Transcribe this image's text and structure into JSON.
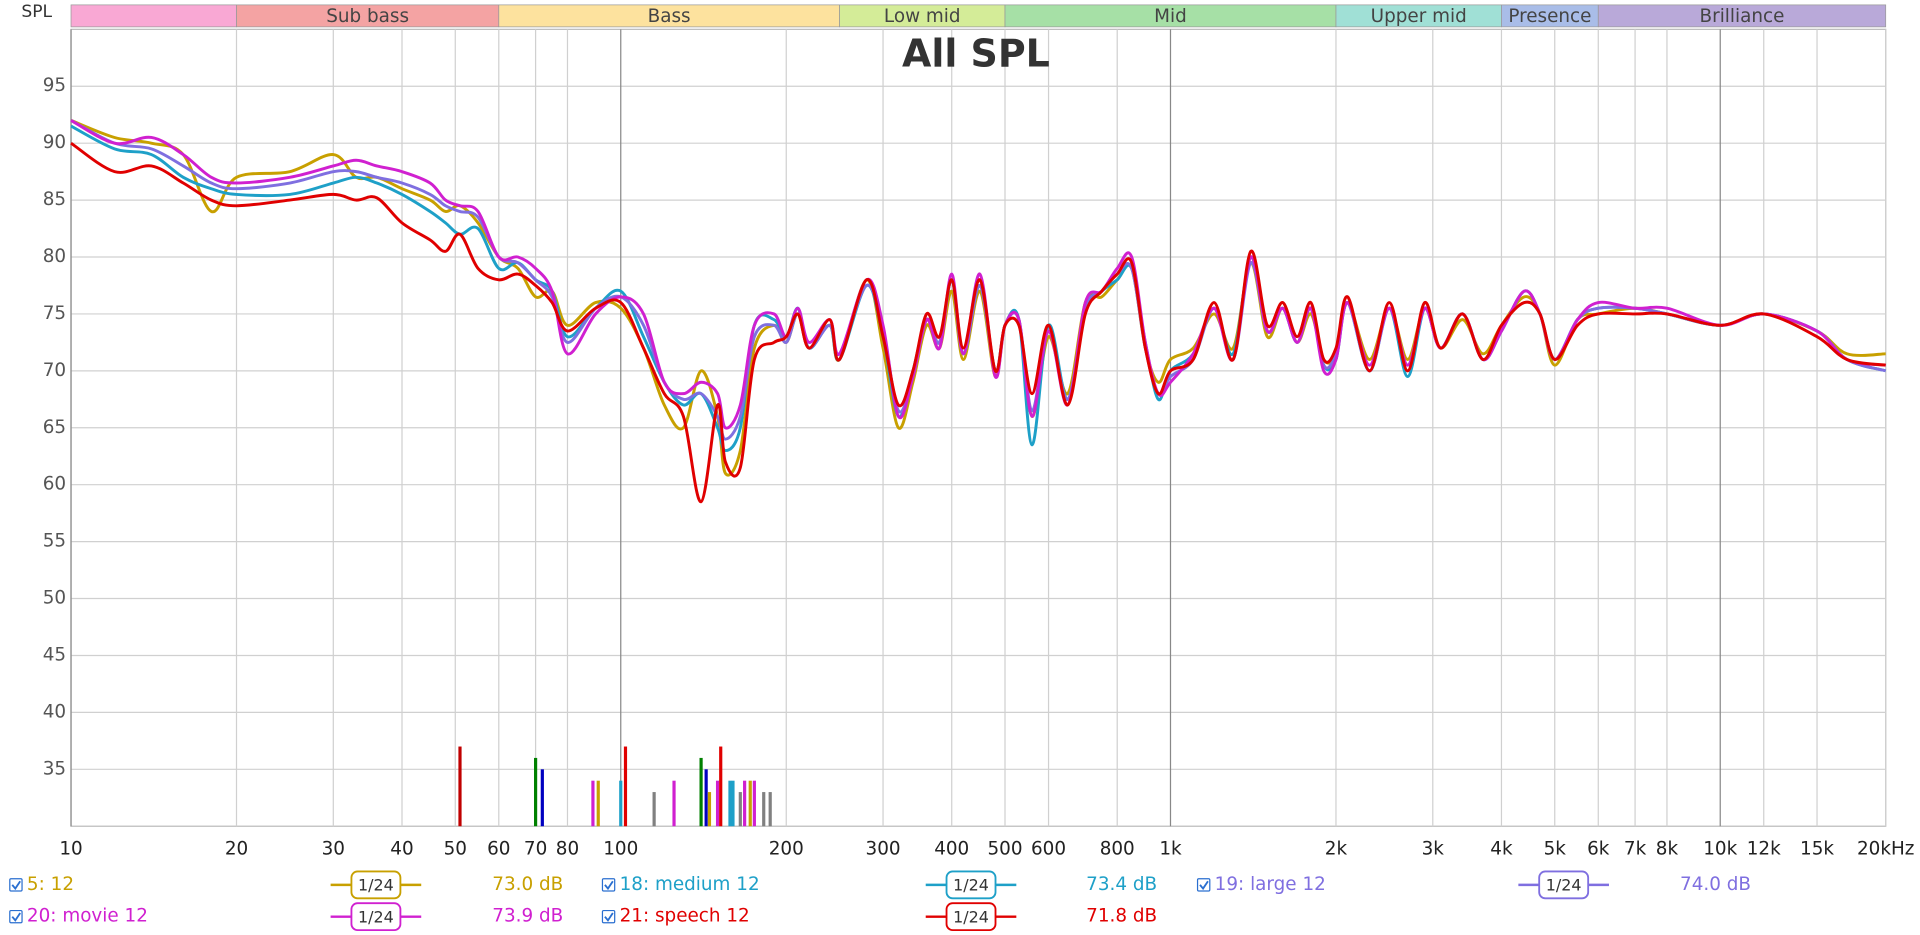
{
  "chart_data": {
    "type": "line",
    "title": "All SPL",
    "y_label": "SPL",
    "xlog": true,
    "xlim": [
      10,
      20000
    ],
    "ylim": [
      30,
      100
    ],
    "grid": true,
    "xticks": [
      10,
      20,
      30,
      40,
      50,
      60,
      70,
      80,
      100,
      200,
      300,
      400,
      500,
      600,
      800,
      {
        "value": 1000,
        "label": "1k"
      },
      {
        "value": 2000,
        "label": "2k"
      },
      {
        "value": 3000,
        "label": "3k"
      },
      {
        "value": 4000,
        "label": "4k"
      },
      {
        "value": 5000,
        "label": "5k"
      },
      {
        "value": 6000,
        "label": "6k"
      },
      {
        "value": 7000,
        "label": "7k"
      },
      {
        "value": 8000,
        "label": "8k"
      },
      {
        "value": 10000,
        "label": "10k"
      },
      {
        "value": 12000,
        "label": "12k"
      },
      {
        "value": 15000,
        "label": "15k"
      },
      {
        "value": 20000,
        "label": "20kHz"
      }
    ],
    "yticks": [
      35,
      40,
      45,
      50,
      55,
      60,
      65,
      70,
      75,
      80,
      85,
      90,
      95
    ],
    "bands": [
      {
        "label": null,
        "from": 10,
        "to": 20,
        "color": "#f9a8d4"
      },
      {
        "label": "Sub bass",
        "from": 20,
        "to": 60,
        "color": "#f4a3a3"
      },
      {
        "label": "Bass",
        "from": 60,
        "to": 250,
        "color": "#fde29e"
      },
      {
        "label": "Low mid",
        "from": 250,
        "to": 500,
        "color": "#d4ec98"
      },
      {
        "label": "Mid",
        "from": 500,
        "to": 2000,
        "color": "#a6e0a6"
      },
      {
        "label": "Upper mid",
        "from": 2000,
        "to": 4000,
        "color": "#a0e0d6"
      },
      {
        "label": "Presence",
        "from": 4000,
        "to": 6000,
        "color": "#a9bde8"
      },
      {
        "label": "Brilliance",
        "from": 6000,
        "to": 20000,
        "color": "#b9a9d9"
      }
    ],
    "x": [
      10,
      12,
      14,
      16,
      18,
      20,
      25,
      30,
      33,
      36,
      40,
      45,
      48,
      51,
      55,
      60,
      65,
      70,
      75,
      80,
      90,
      100,
      110,
      120,
      130,
      140,
      150,
      155,
      165,
      175,
      190,
      200,
      210,
      220,
      240,
      250,
      280,
      300,
      320,
      340,
      360,
      380,
      400,
      420,
      450,
      480,
      500,
      530,
      560,
      600,
      650,
      700,
      750,
      800,
      850,
      900,
      950,
      1000,
      1100,
      1200,
      1300,
      1400,
      1500,
      1600,
      1700,
      1800,
      1900,
      2000,
      2100,
      2300,
      2500,
      2700,
      2900,
      3100,
      3400,
      3700,
      4000,
      4400,
      4700,
      5000,
      5500,
      6000,
      7000,
      8000,
      10000,
      12000,
      15000,
      17000,
      20000
    ],
    "series": [
      {
        "name": "5: 12",
        "color": "#c8a000",
        "smoothing": "1/24",
        "level_label": "73.0 dB",
        "values": [
          92,
          90.5,
          90,
          89,
          84,
          87,
          87.5,
          89,
          87,
          87,
          86,
          85,
          84,
          84.5,
          83,
          80,
          79,
          76.5,
          77,
          74,
          76,
          75.5,
          72,
          67,
          65,
          70,
          66,
          61,
          63,
          72,
          74,
          72.5,
          75,
          72,
          74,
          71,
          78,
          72,
          65,
          69,
          74,
          72,
          77,
          71,
          77,
          69.5,
          74,
          74.5,
          66,
          73,
          68,
          76,
          76.5,
          78,
          79,
          72,
          69,
          71,
          72,
          75,
          72,
          79.5,
          73,
          75.5,
          72.5,
          75,
          71,
          71.5,
          76,
          71,
          75.5,
          71,
          75.5,
          72,
          74.5,
          71.5,
          74,
          76.5,
          75,
          70.5,
          74.5,
          75,
          75.5,
          75,
          74,
          75,
          73.5,
          71.5,
          71.5
        ]
      },
      {
        "name": "18: medium 12",
        "color": "#1ea0c8",
        "smoothing": "1/24",
        "level_label": "73.4 dB",
        "values": [
          91.5,
          89.5,
          89,
          87,
          86,
          85.5,
          85.5,
          86.5,
          87,
          86.5,
          85.5,
          84,
          83,
          82,
          82.5,
          79,
          79.5,
          78,
          77,
          73,
          75.5,
          77,
          73,
          69,
          67,
          68,
          65,
          63,
          65,
          74,
          74.5,
          73,
          75.5,
          72,
          74,
          71,
          77.5,
          73,
          66,
          70,
          74.5,
          72.5,
          78,
          71.5,
          77.5,
          70,
          74,
          74.5,
          63.5,
          74,
          67.5,
          75.5,
          77,
          78,
          79,
          72.5,
          67.5,
          70,
          71.5,
          75.5,
          71.5,
          80,
          73.5,
          75.5,
          72.5,
          75.5,
          70.5,
          71,
          76,
          70,
          75.5,
          69.5,
          75.5,
          72,
          75,
          71,
          73.5,
          77,
          75,
          71,
          74.5,
          75.5,
          75.5,
          75,
          74,
          75,
          73.5,
          71,
          70
        ]
      },
      {
        "name": "19: large 12",
        "color": "#7f6fe0",
        "smoothing": "1/24",
        "level_label": "74.0 dB",
        "values": [
          92,
          90,
          89.5,
          88,
          86.5,
          86,
          86.5,
          87.5,
          87.5,
          87,
          86.5,
          85.5,
          84.5,
          84,
          83.5,
          80,
          79.5,
          78,
          76.5,
          72.5,
          75.5,
          76.5,
          74,
          69,
          67.5,
          68,
          66,
          64,
          66,
          73,
          74,
          72.5,
          75,
          72,
          74,
          71.5,
          77.5,
          73.5,
          66.5,
          69.5,
          74.5,
          72.5,
          78,
          71.5,
          77.5,
          70,
          74,
          74.5,
          66.5,
          73.5,
          67.5,
          75.5,
          77,
          78.5,
          79,
          72,
          68,
          69.5,
          71,
          75.5,
          71,
          79.5,
          73.5,
          75.5,
          72.5,
          75.5,
          70.5,
          71.5,
          76,
          70,
          75.5,
          70.5,
          75.5,
          72,
          75,
          71,
          73.5,
          77,
          75,
          71,
          74.5,
          75.5,
          75.5,
          75,
          74,
          75,
          73.5,
          71,
          70
        ]
      },
      {
        "name": "20: movie 12",
        "color": "#d020d0",
        "smoothing": "1/24",
        "level_label": "73.9 dB",
        "values": [
          92,
          90,
          90.5,
          89,
          87,
          86.5,
          87,
          88,
          88.5,
          88,
          87.5,
          86.5,
          85,
          84.5,
          84,
          80,
          80,
          79,
          77,
          71.5,
          75,
          76.5,
          75,
          69,
          68,
          69,
          68,
          65,
          67,
          74,
          75,
          73,
          75.5,
          72.5,
          74.5,
          71.5,
          78,
          74,
          66,
          69.5,
          74.5,
          72,
          78.5,
          71.5,
          78.5,
          69.5,
          74,
          74.5,
          66,
          73.5,
          67,
          76,
          77,
          79,
          80,
          72.5,
          68,
          69,
          71.5,
          75.5,
          71,
          80,
          73.5,
          75.5,
          72.5,
          75.5,
          70,
          71,
          76,
          70.5,
          75.5,
          70.5,
          75.5,
          72,
          75,
          71,
          73.5,
          77,
          75,
          71,
          74.5,
          76,
          75.5,
          75.5,
          74,
          75,
          73.5,
          71,
          70.5
        ]
      },
      {
        "name": "21: speech 12",
        "color": "#e00000",
        "smoothing": "1/24",
        "level_label": "71.8 dB",
        "values": [
          90,
          87.5,
          88,
          86.5,
          85,
          84.5,
          85,
          85.5,
          85,
          85.2,
          83,
          81.5,
          80.5,
          82,
          79,
          78,
          78.5,
          77.5,
          76,
          73.5,
          75.5,
          76,
          72,
          68,
          66,
          58.5,
          67,
          62,
          61.5,
          71,
          72.5,
          73,
          75,
          72,
          74.5,
          71,
          78,
          73,
          67,
          70,
          75,
          73,
          78,
          72,
          78,
          70,
          74,
          74,
          68,
          74,
          67,
          75,
          77,
          78.5,
          79.5,
          72,
          68,
          70,
          71,
          76,
          71,
          80.5,
          74,
          76,
          73,
          76,
          71,
          72,
          76.5,
          70,
          76,
          70,
          76,
          72,
          75,
          71,
          74,
          76,
          75,
          71,
          74,
          75,
          75,
          75,
          74,
          75,
          73,
          71,
          70.5
        ]
      }
    ],
    "markers": {
      "x": [
        51,
        70,
        72,
        89,
        91,
        100,
        102,
        115,
        125,
        140,
        143,
        145,
        150,
        152,
        158,
        160,
        165,
        168,
        172,
        175,
        182,
        187
      ],
      "values": [
        37,
        36,
        35,
        34,
        34,
        34,
        37,
        33,
        34,
        36,
        35,
        33,
        34,
        37,
        34,
        34,
        33,
        34,
        34,
        34,
        33,
        33
      ],
      "colors": [
        "#c00000",
        "#008000",
        "#0000c0",
        "#d020d0",
        "#c8a000",
        "#1ea0c8",
        "#e00000",
        "#808080",
        "#d020d0",
        "#008000",
        "#0000c0",
        "#c8a000",
        "#d020d0",
        "#e00000",
        "#1ea0c8",
        "#1ea0c8",
        "#808080",
        "#d020d0",
        "#c8a000",
        "#d020d0",
        "#808080",
        "#808080"
      ]
    }
  }
}
